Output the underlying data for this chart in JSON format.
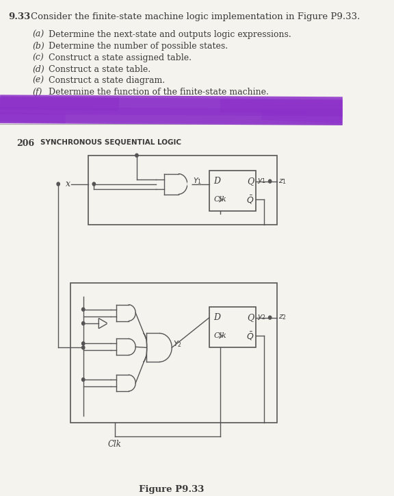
{
  "title_number": "9.33",
  "title_text": "Consider the finite-state machine logic implementation in Figure P9.33.",
  "item_labels": [
    "(a)",
    "(b)",
    "(c)",
    "(d)",
    "(e)",
    "(f)"
  ],
  "item_texts": [
    "Determine the next-state and outputs logic expressions.",
    "Determine the number of possible states.",
    "Construct a state assigned table.",
    "Construct a state table.",
    "Construct a state diagram.",
    "Determine the function of the finite-state machine."
  ],
  "highlight_color": "#8B2FC9",
  "page_number": "206",
  "page_label": "SYNCHRONOUS SEQUENTIAL LOGIC",
  "figure_label": "Figure P9.33",
  "bg_color": "#f5f3ee",
  "text_color": "#3a3a3a",
  "line_color": "#555555"
}
